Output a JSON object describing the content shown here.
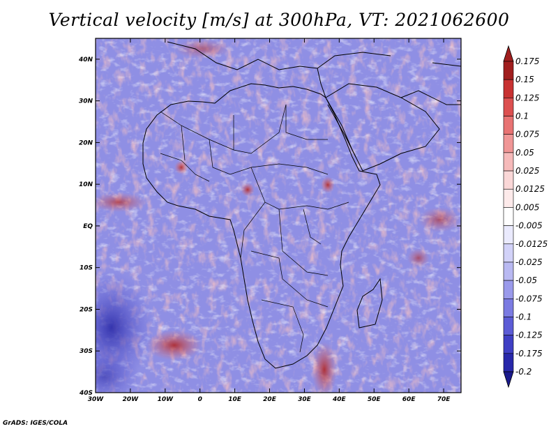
{
  "chart_data": {
    "type": "heatmap",
    "title": "Vertical velocity [m/s] at 300hPa, VT: 2021062600",
    "variable": "Vertical velocity",
    "units": "m/s",
    "level": "300hPa",
    "valid_time": "2021062600",
    "x_axis": {
      "range": [
        -30,
        75
      ],
      "tick_labels": [
        "30W",
        "20W",
        "10W",
        "0",
        "10E",
        "20E",
        "30E",
        "40E",
        "50E",
        "60E",
        "70E"
      ],
      "tick_values": [
        -30,
        -20,
        -10,
        0,
        10,
        20,
        30,
        40,
        50,
        60,
        70
      ]
    },
    "y_axis": {
      "range": [
        -40,
        45
      ],
      "tick_labels": [
        "40S",
        "30S",
        "20S",
        "10S",
        "EQ",
        "10N",
        "20N",
        "30N",
        "40N"
      ],
      "tick_values": [
        -40,
        -30,
        -20,
        -10,
        0,
        10,
        20,
        30,
        40
      ]
    },
    "colorbar": {
      "levels": [
        "0.175",
        "0.15",
        "0.125",
        "0.1",
        "0.075",
        "0.05",
        "0.025",
        "0.0125",
        "0.005",
        "-0.005",
        "-0.0125",
        "-0.025",
        "-0.05",
        "-0.075",
        "-0.1",
        "-0.125",
        "-0.175",
        "-0.2"
      ],
      "colors": [
        "#a01e1e",
        "#c83232",
        "#dc5050",
        "#e87373",
        "#f09696",
        "#f6baba",
        "#fad7d7",
        "#fdeaea",
        "#ffffff",
        "#eaeafd",
        "#d2d2f8",
        "#b9b9f2",
        "#9a9aeb",
        "#7b7be2",
        "#5c5cd6",
        "#3f3fc4",
        "#2828aa",
        "#1a1a8c"
      ],
      "placement": "right",
      "extends": "both"
    },
    "map": "Africa with country boundaries and coastlines",
    "grid": false
  },
  "credit": "GrADS: IGES/COLA"
}
